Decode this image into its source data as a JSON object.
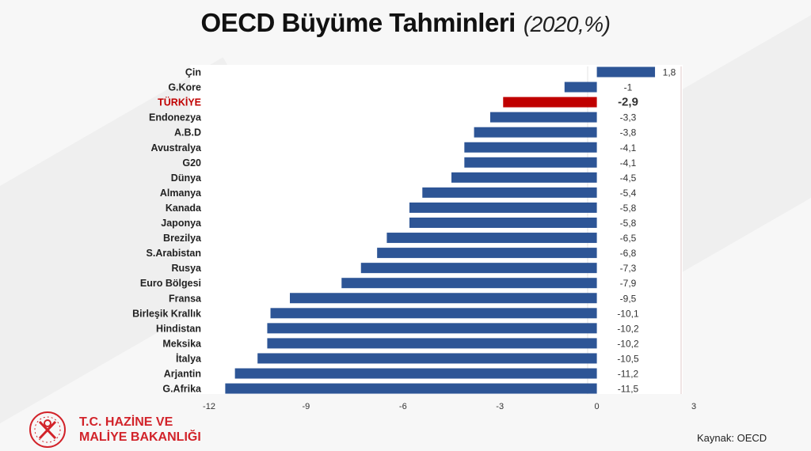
{
  "title": "OECD Büyüme Tahminleri",
  "subtitle": "(2020,%)",
  "colors": {
    "bar": "#2d5596",
    "highlight": "#c00000",
    "highlight_label": "#c00000"
  },
  "chart_data": {
    "type": "bar",
    "orientation": "horizontal",
    "title": "OECD Büyüme Tahminleri",
    "subtitle": "(2020,%)",
    "categories": [
      "Çin",
      "G.Kore",
      "TÜRKİYE",
      "Endonezya",
      "A.B.D",
      "Avustralya",
      "G20",
      "Dünya",
      "Almanya",
      "Kanada",
      "Japonya",
      "Brezilya",
      "S.Arabistan",
      "Rusya",
      "Euro Bölgesi",
      "Fransa",
      "Birleşik Krallık",
      "Hindistan",
      "Meksika",
      "İtalya",
      "Arjantin",
      "G.Afrika"
    ],
    "values": [
      1.8,
      -1,
      -2.9,
      -3.3,
      -3.8,
      -4.1,
      -4.1,
      -4.5,
      -5.4,
      -5.8,
      -5.8,
      -6.5,
      -6.8,
      -7.3,
      -7.9,
      -9.5,
      -10.1,
      -10.2,
      -10.2,
      -10.5,
      -11.2,
      -11.5
    ],
    "value_labels": [
      "1,8",
      "-1",
      "-2,9",
      "-3,3",
      "-3,8",
      "-4,1",
      "-4,1",
      "-4,5",
      "-5,4",
      "-5,8",
      "-5,8",
      "-6,5",
      "-6,8",
      "-7,3",
      "-7,9",
      "-9,5",
      "-10,1",
      "-10,2",
      "-10,2",
      "-10,5",
      "-11,2",
      "-11,5"
    ],
    "highlight": "TÜRKİYE",
    "xlim": [
      -12,
      3
    ],
    "x_ticks": [
      "-12",
      "-9",
      "-6",
      "-3",
      "0",
      "3"
    ],
    "x_tick_values": [
      -12,
      -9,
      -6,
      -3,
      0,
      3
    ],
    "grid": false,
    "legend": "none"
  },
  "footer": {
    "brand_line1": "T.C. HAZİNE VE",
    "brand_line2": "MALİYE BAKANLIĞI",
    "source": "Kaynak: OECD"
  }
}
